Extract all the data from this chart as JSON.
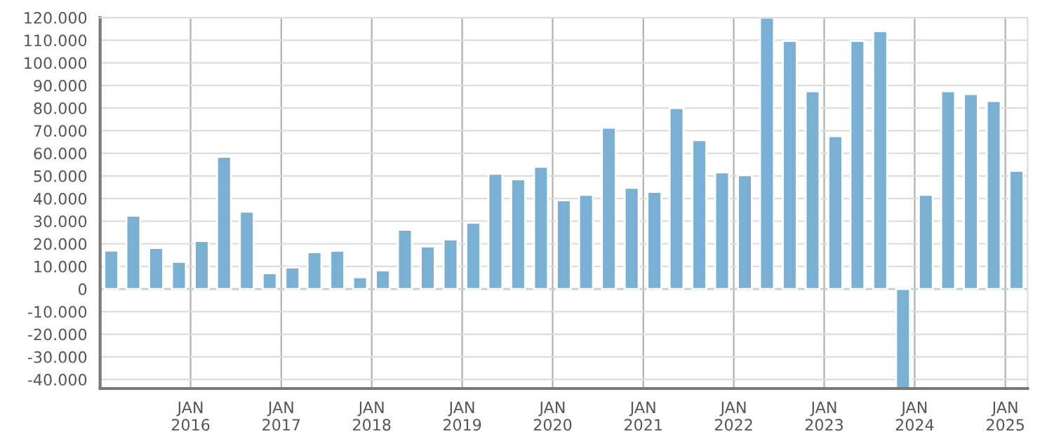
{
  "chart_data": {
    "type": "bar",
    "x": [
      "2015-02-15",
      "2015-05-15",
      "2015-08-15",
      "2015-11-15",
      "2016-02-15",
      "2016-05-15",
      "2016-08-15",
      "2016-11-15",
      "2017-02-15",
      "2017-05-15",
      "2017-08-15",
      "2017-11-15",
      "2018-02-15",
      "2018-05-15",
      "2018-08-15",
      "2018-11-15",
      "2019-02-15",
      "2019-05-15",
      "2019-08-15",
      "2019-11-15",
      "2020-02-15",
      "2020-05-15",
      "2020-08-15",
      "2020-11-15",
      "2021-02-15",
      "2021-05-15",
      "2021-08-15",
      "2021-11-15",
      "2022-02-15",
      "2022-05-15",
      "2022-08-15",
      "2022-11-15",
      "2023-02-15",
      "2023-05-15",
      "2023-08-15",
      "2023-11-15",
      "2024-02-15",
      "2024-05-15",
      "2024-08-15",
      "2024-11-15",
      "2025-02-15"
    ],
    "values": [
      17000,
      32400,
      18100,
      12000,
      21200,
      58400,
      34200,
      7000,
      9500,
      16300,
      16900,
      5200,
      8200,
      26200,
      18800,
      21900,
      29300,
      50900,
      48500,
      54000,
      39200,
      41600,
      71300,
      44700,
      42900,
      80000,
      65800,
      51500,
      50300,
      120000,
      109700,
      87400,
      67600,
      109700,
      114000,
      -44000,
      41600,
      87400,
      86200,
      83100,
      52200
    ],
    "color": "#79b0d3",
    "xlim": [
      "2015-01-01",
      "2025-04-01"
    ],
    "xticks": [
      {
        "value": "2016-01-01",
        "label": "JAN\n2016"
      },
      {
        "value": "2017-01-01",
        "label": "JAN\n2017"
      },
      {
        "value": "2018-01-01",
        "label": "JAN\n2018"
      },
      {
        "value": "2019-01-01",
        "label": "JAN\n2019"
      },
      {
        "value": "2020-01-01",
        "label": "JAN\n2020"
      },
      {
        "value": "2021-01-01",
        "label": "JAN\n2021"
      },
      {
        "value": "2022-01-01",
        "label": "JAN\n2022"
      },
      {
        "value": "2023-01-01",
        "label": "JAN\n2023"
      },
      {
        "value": "2024-01-01",
        "label": "JAN\n2024"
      },
      {
        "value": "2025-01-01",
        "label": "JAN\n2025"
      }
    ],
    "ylim": [
      -44000,
      120000
    ],
    "yticks": [
      {
        "value": -40000,
        "label": "-40.000"
      },
      {
        "value": -30000,
        "label": "-30.000"
      },
      {
        "value": -20000,
        "label": "-20.000"
      },
      {
        "value": -10000,
        "label": "-10.000"
      },
      0,
      {
        "value": 10000,
        "label": "10.000"
      },
      {
        "value": 20000,
        "label": "20.000"
      },
      {
        "value": 30000,
        "label": "30.000"
      },
      {
        "value": 40000,
        "label": "40.000"
      },
      {
        "value": 50000,
        "label": "50.000"
      },
      {
        "value": 60000,
        "label": "60.000"
      },
      {
        "value": 70000,
        "label": "70.000"
      },
      {
        "value": 80000,
        "label": "80.000"
      },
      {
        "value": 90000,
        "label": "90.000"
      },
      {
        "value": 100000,
        "label": "100.000"
      },
      {
        "value": 110000,
        "label": "110.000"
      },
      {
        "value": 120000,
        "label": "120.000"
      }
    ],
    "grid": true
  }
}
